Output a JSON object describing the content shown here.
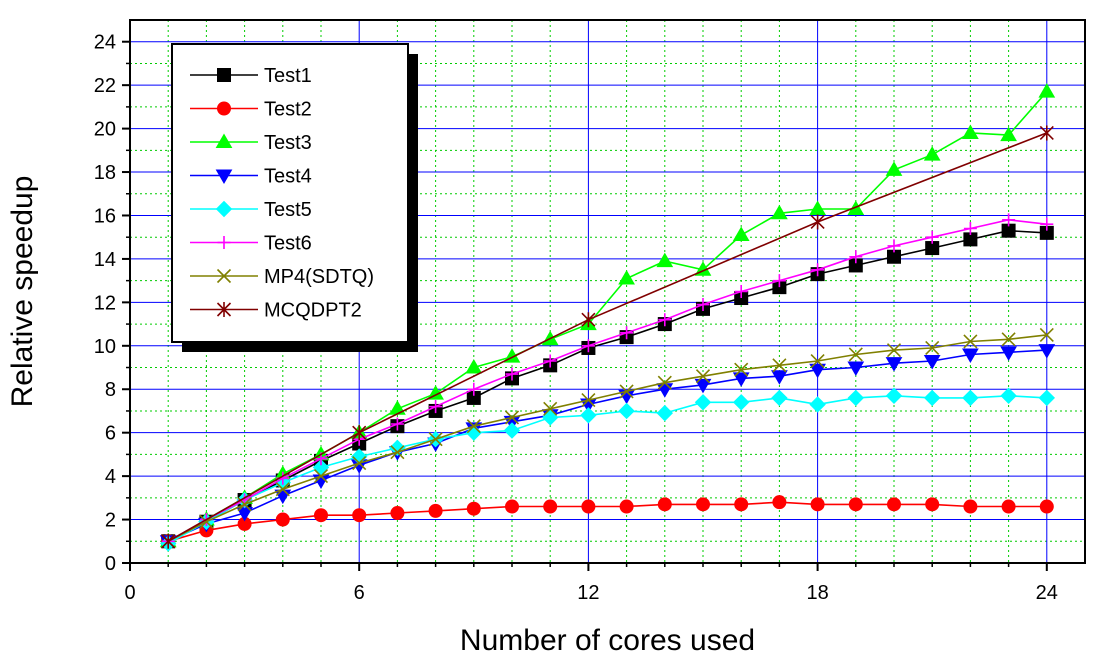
{
  "chart_data": {
    "type": "line",
    "xlabel": "Number of cores used",
    "ylabel": "Relative speedup",
    "xlim": [
      0,
      25
    ],
    "ylim": [
      0,
      25
    ],
    "xticks": [
      0,
      6,
      12,
      18,
      24
    ],
    "yticks": [
      0,
      2,
      4,
      6,
      8,
      10,
      12,
      14,
      16,
      18,
      20,
      22,
      24
    ],
    "grid": true,
    "legend_position": "top-left",
    "series": [
      {
        "name": "Test1",
        "color": "#000000",
        "marker": "square",
        "x": [
          1,
          2,
          3,
          4,
          5,
          6,
          7,
          8,
          9,
          10,
          11,
          12,
          13,
          14,
          15,
          16,
          17,
          18,
          19,
          20,
          21,
          22,
          23,
          24
        ],
        "y": [
          1.0,
          1.9,
          2.9,
          3.8,
          4.7,
          5.5,
          6.3,
          7.0,
          7.6,
          8.5,
          9.1,
          9.9,
          10.4,
          11.0,
          11.7,
          12.2,
          12.7,
          13.3,
          13.7,
          14.1,
          14.5,
          14.9,
          15.3,
          15.2
        ]
      },
      {
        "name": "Test2",
        "color": "#ff0000",
        "marker": "circle",
        "x": [
          1,
          2,
          3,
          4,
          5,
          6,
          7,
          8,
          9,
          10,
          11,
          12,
          13,
          14,
          15,
          16,
          17,
          18,
          19,
          20,
          21,
          22,
          23,
          24
        ],
        "y": [
          1.0,
          1.5,
          1.8,
          2.0,
          2.2,
          2.2,
          2.3,
          2.4,
          2.5,
          2.6,
          2.6,
          2.6,
          2.6,
          2.7,
          2.7,
          2.7,
          2.8,
          2.7,
          2.7,
          2.7,
          2.7,
          2.6,
          2.6,
          2.6
        ]
      },
      {
        "name": "Test3",
        "color": "#00ff00",
        "marker": "triangle-up",
        "x": [
          1,
          2,
          3,
          4,
          5,
          6,
          7,
          8,
          9,
          10,
          11,
          12,
          13,
          14,
          15,
          16,
          17,
          18,
          19,
          20,
          21,
          22,
          23,
          24
        ],
        "y": [
          1.0,
          2.0,
          3.0,
          4.1,
          5.0,
          6.0,
          7.1,
          7.8,
          9.0,
          9.5,
          10.3,
          11.0,
          13.1,
          13.9,
          13.5,
          15.1,
          16.1,
          16.3,
          16.3,
          18.1,
          18.8,
          19.8,
          19.7,
          21.7
        ]
      },
      {
        "name": "Test4",
        "color": "#0000ff",
        "marker": "triangle-down",
        "x": [
          1,
          2,
          3,
          4,
          5,
          6,
          7,
          8,
          9,
          10,
          11,
          12,
          13,
          14,
          15,
          16,
          17,
          18,
          19,
          20,
          21,
          22,
          23,
          24
        ],
        "y": [
          1.0,
          1.8,
          2.3,
          3.1,
          3.8,
          4.5,
          5.1,
          5.5,
          6.2,
          6.5,
          6.8,
          7.3,
          7.7,
          8.0,
          8.2,
          8.5,
          8.6,
          8.9,
          9.0,
          9.2,
          9.3,
          9.6,
          9.7,
          9.8
        ]
      },
      {
        "name": "Test5",
        "color": "#00ffff",
        "marker": "diamond",
        "x": [
          1,
          2,
          3,
          4,
          5,
          6,
          7,
          8,
          9,
          10,
          11,
          12,
          13,
          14,
          15,
          16,
          17,
          18,
          19,
          20,
          21,
          22,
          23,
          24
        ],
        "y": [
          0.9,
          1.9,
          2.9,
          3.7,
          4.4,
          4.9,
          5.3,
          5.7,
          6.0,
          6.1,
          6.7,
          6.8,
          7.0,
          6.9,
          7.4,
          7.4,
          7.6,
          7.3,
          7.6,
          7.7,
          7.6,
          7.6,
          7.7,
          7.6
        ]
      },
      {
        "name": "Test6",
        "color": "#ff00ff",
        "marker": "plus",
        "x": [
          1,
          2,
          3,
          4,
          5,
          6,
          7,
          8,
          9,
          10,
          11,
          12,
          13,
          14,
          15,
          16,
          17,
          18,
          19,
          20,
          21,
          22,
          23,
          24
        ],
        "y": [
          1.0,
          2.0,
          2.9,
          3.9,
          4.8,
          5.7,
          6.4,
          7.2,
          8.0,
          8.7,
          9.3,
          10.0,
          10.6,
          11.2,
          11.9,
          12.5,
          13.0,
          13.5,
          14.1,
          14.6,
          15.0,
          15.4,
          15.8,
          15.6
        ]
      },
      {
        "name": "MP4(SDTQ)",
        "color": "#808000",
        "marker": "x",
        "x": [
          1,
          2,
          3,
          4,
          5,
          6,
          7,
          8,
          9,
          10,
          11,
          12,
          13,
          14,
          15,
          16,
          17,
          18,
          19,
          20,
          21,
          22,
          23,
          24
        ],
        "y": [
          1.0,
          1.9,
          2.7,
          3.4,
          4.0,
          4.6,
          5.1,
          5.7,
          6.3,
          6.7,
          7.1,
          7.5,
          7.9,
          8.3,
          8.6,
          8.9,
          9.1,
          9.3,
          9.6,
          9.8,
          9.9,
          10.2,
          10.3,
          10.5
        ]
      },
      {
        "name": "MCQDPT2",
        "color": "#800000",
        "marker": "asterisk",
        "x": [
          1,
          6,
          12,
          18,
          24
        ],
        "y": [
          1.0,
          6.0,
          11.2,
          15.7,
          19.8
        ]
      }
    ]
  }
}
